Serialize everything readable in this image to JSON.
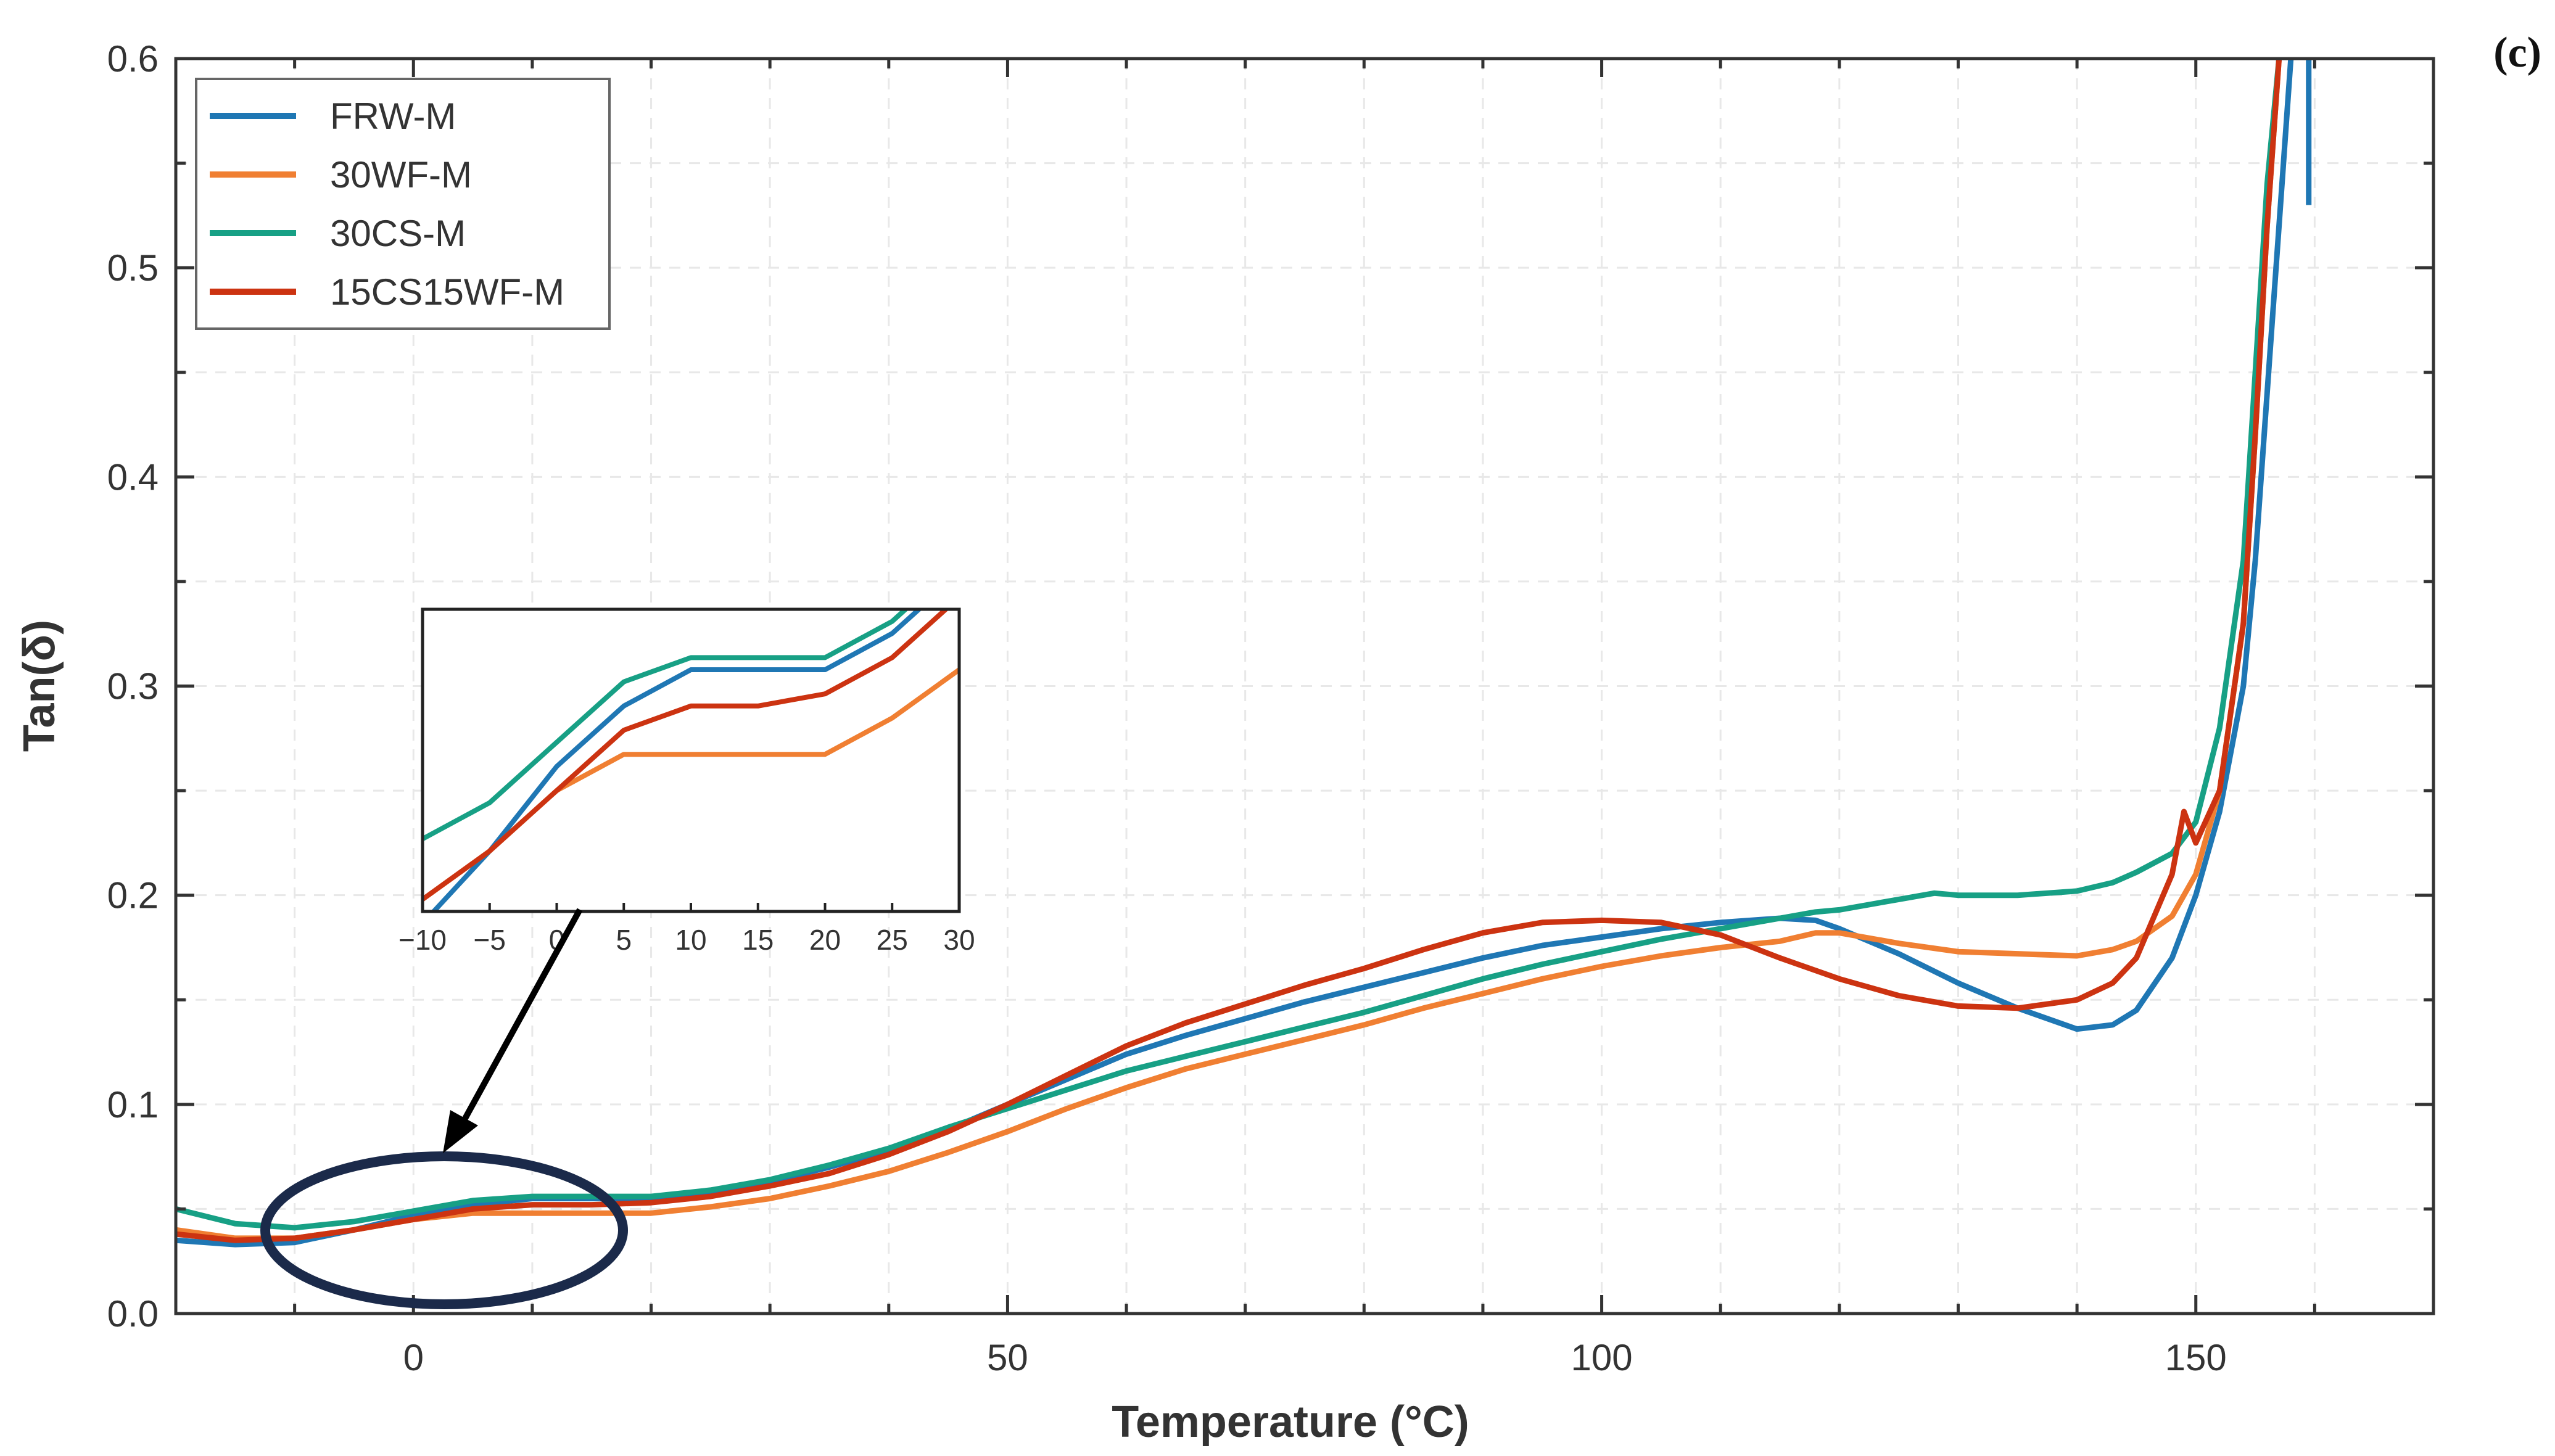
{
  "panel_label": "(c)",
  "chart_data": {
    "type": "line",
    "title": "",
    "xlabel": "Temperature (°C)",
    "ylabel": "Tan(δ)",
    "xlim": [
      -20,
      170
    ],
    "ylim": [
      0,
      0.6
    ],
    "x_ticks": [
      0,
      50,
      100,
      150
    ],
    "x_tick_labels": [
      "0",
      "50",
      "100",
      "150"
    ],
    "y_ticks": [
      0,
      0.1,
      0.2,
      0.3,
      0.4,
      0.5,
      0.6
    ],
    "y_tick_labels": [
      "0.0",
      "0.1",
      "0.2",
      "0.3",
      "0.4",
      "0.5",
      "0.6"
    ],
    "grid": true,
    "legend_position": "top-left",
    "series": [
      {
        "name": "FRW-M",
        "color": "#1f77b4",
        "x": [
          -20,
          -15,
          -10,
          -5,
          0,
          5,
          10,
          15,
          20,
          25,
          30,
          35,
          40,
          45,
          50,
          55,
          60,
          65,
          70,
          75,
          80,
          85,
          90,
          95,
          100,
          105,
          110,
          115,
          118,
          120,
          125,
          130,
          135,
          140,
          143,
          145,
          148,
          150,
          152,
          154,
          155,
          156,
          157,
          158
        ],
        "y": [
          0.035,
          0.033,
          0.034,
          0.04,
          0.047,
          0.052,
          0.055,
          0.055,
          0.055,
          0.058,
          0.063,
          0.07,
          0.078,
          0.088,
          0.1,
          0.112,
          0.124,
          0.133,
          0.141,
          0.149,
          0.156,
          0.163,
          0.17,
          0.176,
          0.18,
          0.184,
          0.187,
          0.189,
          0.188,
          0.184,
          0.172,
          0.158,
          0.146,
          0.136,
          0.138,
          0.145,
          0.17,
          0.2,
          0.24,
          0.3,
          0.36,
          0.44,
          0.52,
          0.6
        ]
      },
      {
        "name": "30WF-M",
        "color": "#f07f32",
        "x": [
          -20,
          -15,
          -10,
          -5,
          0,
          5,
          10,
          15,
          20,
          25,
          30,
          35,
          40,
          45,
          50,
          55,
          60,
          65,
          70,
          75,
          80,
          85,
          90,
          95,
          100,
          105,
          110,
          115,
          118,
          120,
          125,
          130,
          135,
          140,
          143,
          145,
          148,
          150,
          152,
          154,
          155,
          156,
          157
        ],
        "y": [
          0.04,
          0.036,
          0.036,
          0.04,
          0.045,
          0.048,
          0.048,
          0.048,
          0.048,
          0.051,
          0.055,
          0.061,
          0.068,
          0.077,
          0.087,
          0.098,
          0.108,
          0.117,
          0.124,
          0.131,
          0.138,
          0.146,
          0.153,
          0.16,
          0.166,
          0.171,
          0.175,
          0.178,
          0.182,
          0.182,
          0.177,
          0.173,
          0.172,
          0.171,
          0.174,
          0.178,
          0.19,
          0.21,
          0.25,
          0.33,
          0.42,
          0.52,
          0.6
        ]
      },
      {
        "name": "30CS-M",
        "color": "#17a085",
        "x": [
          -20,
          -15,
          -10,
          -5,
          0,
          5,
          10,
          15,
          20,
          25,
          30,
          35,
          40,
          45,
          50,
          55,
          60,
          65,
          70,
          75,
          80,
          85,
          90,
          95,
          100,
          105,
          110,
          115,
          118,
          120,
          125,
          128,
          130,
          135,
          140,
          143,
          145,
          148,
          150,
          152,
          154,
          155,
          156,
          157
        ],
        "y": [
          0.05,
          0.043,
          0.041,
          0.044,
          0.049,
          0.054,
          0.056,
          0.056,
          0.056,
          0.059,
          0.064,
          0.071,
          0.079,
          0.089,
          0.098,
          0.107,
          0.116,
          0.123,
          0.13,
          0.137,
          0.144,
          0.152,
          0.16,
          0.167,
          0.173,
          0.179,
          0.184,
          0.189,
          0.192,
          0.193,
          0.198,
          0.201,
          0.2,
          0.2,
          0.202,
          0.206,
          0.211,
          0.22,
          0.235,
          0.28,
          0.36,
          0.45,
          0.54,
          0.6
        ]
      },
      {
        "name": "15CS15WF-M",
        "color": "#cc3311",
        "x": [
          -20,
          -15,
          -10,
          -5,
          0,
          5,
          10,
          15,
          20,
          25,
          30,
          35,
          40,
          45,
          50,
          55,
          60,
          65,
          70,
          75,
          80,
          85,
          90,
          95,
          100,
          105,
          110,
          115,
          120,
          125,
          130,
          135,
          140,
          143,
          145,
          148,
          149,
          150,
          152,
          154,
          155,
          156,
          157
        ],
        "y": [
          0.038,
          0.035,
          0.036,
          0.04,
          0.045,
          0.05,
          0.052,
          0.052,
          0.053,
          0.056,
          0.061,
          0.067,
          0.076,
          0.087,
          0.1,
          0.114,
          0.128,
          0.139,
          0.148,
          0.157,
          0.165,
          0.174,
          0.182,
          0.187,
          0.188,
          0.187,
          0.181,
          0.17,
          0.16,
          0.152,
          0.147,
          0.146,
          0.15,
          0.158,
          0.17,
          0.21,
          0.24,
          0.225,
          0.25,
          0.33,
          0.42,
          0.52,
          0.6
        ]
      }
    ],
    "inset": {
      "xlim": [
        -10,
        30
      ],
      "ylim": [
        0.035,
        0.06
      ],
      "x_ticks": [
        -10,
        -5,
        0,
        5,
        10,
        15,
        20,
        25,
        30
      ],
      "x_tick_labels": [
        "−10",
        "−5",
        "0",
        "5",
        "10",
        "15",
        "20",
        "25",
        "30"
      ]
    }
  }
}
